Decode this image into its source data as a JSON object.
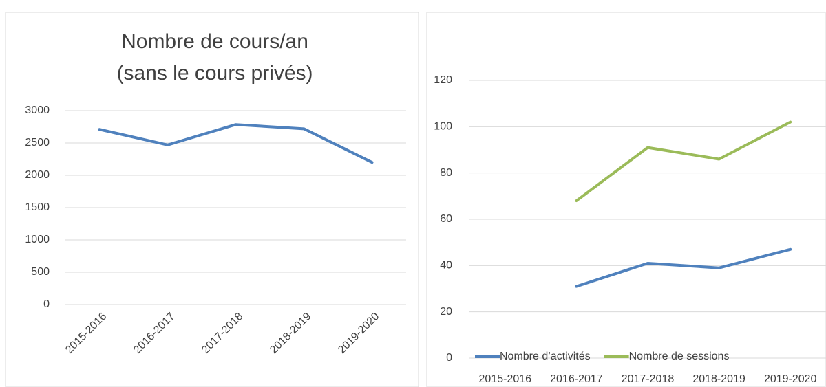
{
  "chart_data": [
    {
      "type": "line",
      "title": [
        "Nombre de cours/an",
        "(sans le cours privés)"
      ],
      "categories": [
        "2015-2016",
        "2016-2017",
        "2017-2018",
        "2018-2019",
        "2019-2020"
      ],
      "series": [
        {
          "name": "Nombre de cours",
          "color": "#4f81bd",
          "values": [
            2710,
            2470,
            2785,
            2720,
            2200
          ]
        }
      ],
      "ylim": [
        0,
        3000
      ],
      "yticks": [
        0,
        500,
        1000,
        1500,
        2000,
        2500,
        3000
      ],
      "grid": true,
      "legend": false,
      "xlabel_rotation": -45
    },
    {
      "type": "line",
      "categories": [
        "2015-2016",
        "2016-2017",
        "2017-2018",
        "2018-2019",
        "2019-2020"
      ],
      "series": [
        {
          "name": "Nombre d’activités",
          "color": "#4f81bd",
          "values": [
            null,
            31,
            41,
            39,
            47
          ]
        },
        {
          "name": "Nombre de sessions",
          "color": "#9bbb59",
          "values": [
            null,
            68,
            91,
            86,
            102
          ]
        }
      ],
      "ylim": [
        0,
        120
      ],
      "yticks": [
        0,
        20,
        40,
        60,
        80,
        100,
        120
      ],
      "grid": true,
      "legend": "bottom-left",
      "xlabel_rotation": 0
    }
  ]
}
